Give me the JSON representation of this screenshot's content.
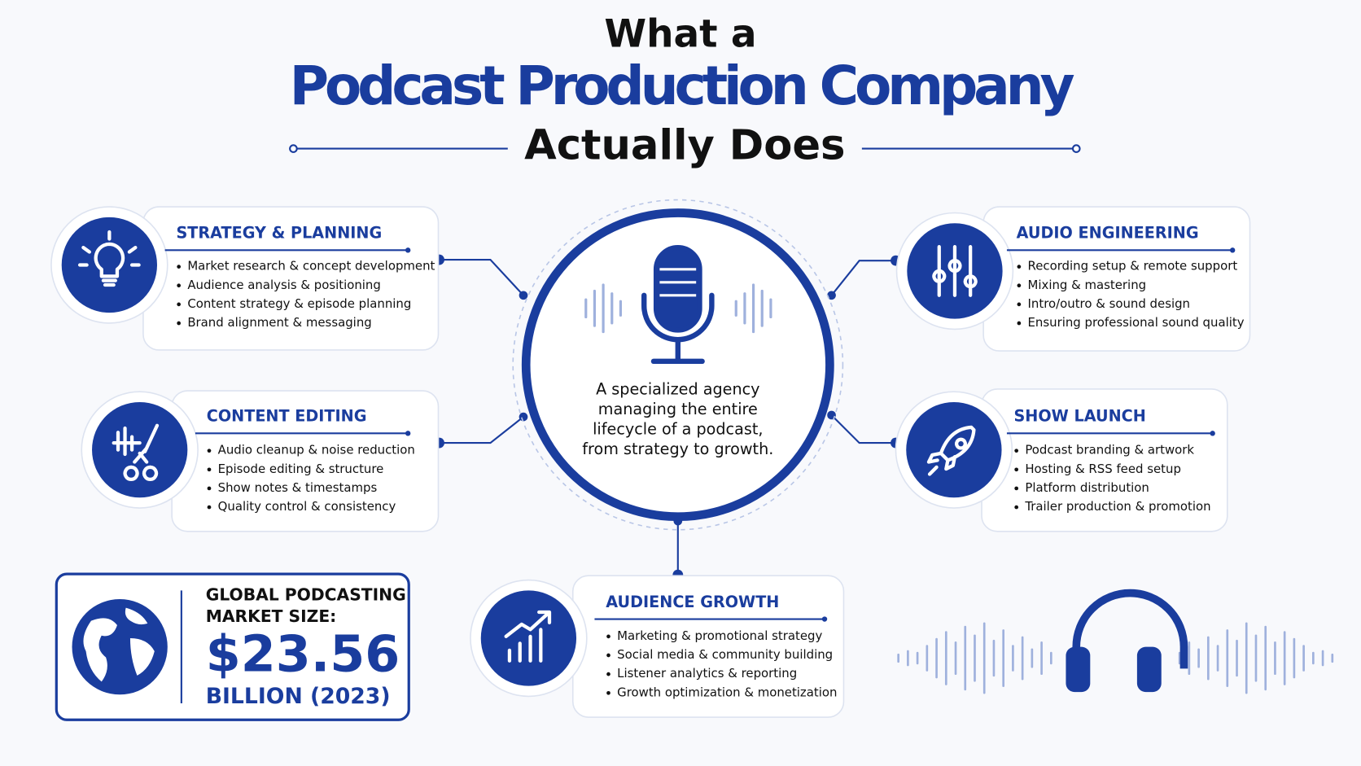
{
  "header": {
    "line1": "What a",
    "line2": "Podcast Production Company",
    "line3": "Actually Does"
  },
  "center": {
    "lines": [
      "A specialized agency",
      "managing the entire",
      "lifecycle of a podcast,",
      "from strategy to growth."
    ]
  },
  "services": [
    {
      "title": "STRATEGY & PLANNING",
      "items": [
        "Market research & concept development",
        "Audience analysis & positioning",
        "Content strategy & episode planning",
        "Brand alignment & messaging"
      ]
    },
    {
      "title": "CONTENT EDITING",
      "items": [
        "Audio cleanup & noise reduction",
        "Episode editing & structure",
        "Show notes & timestamps",
        "Quality control & consistency"
      ]
    },
    {
      "title": "AUDIO ENGINEERING",
      "items": [
        "Recording setup & remote support",
        "Mixing & mastering",
        "Intro/outro & sound design",
        "Ensuring professional sound quality"
      ]
    },
    {
      "title": "SHOW LAUNCH",
      "items": [
        "Podcast branding & artwork",
        "Hosting & RSS feed setup",
        "Platform distribution",
        "Trailer production & promotion"
      ]
    },
    {
      "title": "AUDIENCE GROWTH",
      "items": [
        "Marketing & promotional strategy",
        "Social media & community building",
        "Listener analytics & reporting",
        "Growth optimization & monetization"
      ]
    }
  ],
  "stat": {
    "label_lines": [
      "GLOBAL PODCASTING",
      "MARKET SIZE:"
    ],
    "value": "$23.56",
    "unit": "BILLION (2023)"
  }
}
